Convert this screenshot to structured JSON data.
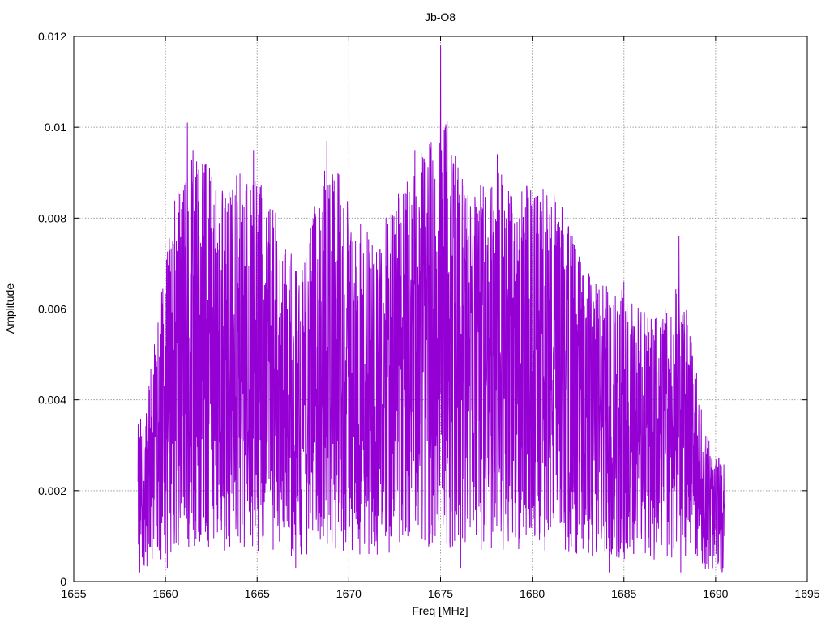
{
  "chart_data": {
    "type": "line",
    "title": "Jb-O8",
    "xlabel": "Freq [MHz]",
    "ylabel": "Amplitude",
    "xlim": [
      1655,
      1695
    ],
    "ylim": [
      0,
      0.012
    ],
    "xticks": [
      1655,
      1660,
      1665,
      1670,
      1675,
      1680,
      1685,
      1690,
      1695
    ],
    "xtick_labels": [
      "1655",
      "1660",
      "1665",
      "1670",
      "1675",
      "1680",
      "1685",
      "1690",
      "1695"
    ],
    "yticks": [
      0,
      0.002,
      0.004,
      0.006,
      0.008,
      0.01,
      0.012
    ],
    "ytick_labels": [
      "0",
      "0.002",
      "0.004",
      "0.006",
      "0.008",
      "0.01",
      "0.012"
    ],
    "grid": true,
    "line_color": "#9400d3",
    "freq_range": [
      1658.5,
      1690.5
    ],
    "peaks": [
      {
        "x": 1658.5,
        "y": 0.0022
      },
      {
        "x": 1659.1,
        "y": 0.0043
      },
      {
        "x": 1659.6,
        "y": 0.0057
      },
      {
        "x": 1660.4,
        "y": 0.0075
      },
      {
        "x": 1660.7,
        "y": 0.0093
      },
      {
        "x": 1661.2,
        "y": 0.0101
      },
      {
        "x": 1661.5,
        "y": 0.0095
      },
      {
        "x": 1662.4,
        "y": 0.0091
      },
      {
        "x": 1663.1,
        "y": 0.0086
      },
      {
        "x": 1663.8,
        "y": 0.0085
      },
      {
        "x": 1664.8,
        "y": 0.0095
      },
      {
        "x": 1665.1,
        "y": 0.0088
      },
      {
        "x": 1665.7,
        "y": 0.0082
      },
      {
        "x": 1666.5,
        "y": 0.0072
      },
      {
        "x": 1667.5,
        "y": 0.0066
      },
      {
        "x": 1668.8,
        "y": 0.0097
      },
      {
        "x": 1669.4,
        "y": 0.009
      },
      {
        "x": 1670.1,
        "y": 0.0075
      },
      {
        "x": 1671.0,
        "y": 0.0077
      },
      {
        "x": 1671.7,
        "y": 0.0073
      },
      {
        "x": 1672.3,
        "y": 0.0081
      },
      {
        "x": 1673.0,
        "y": 0.0084
      },
      {
        "x": 1673.6,
        "y": 0.0095
      },
      {
        "x": 1674.1,
        "y": 0.0093
      },
      {
        "x": 1674.5,
        "y": 0.0088
      },
      {
        "x": 1675.0,
        "y": 0.0118
      },
      {
        "x": 1675.7,
        "y": 0.0092
      },
      {
        "x": 1676.3,
        "y": 0.0085
      },
      {
        "x": 1677.3,
        "y": 0.0082
      },
      {
        "x": 1678.1,
        "y": 0.0094
      },
      {
        "x": 1678.9,
        "y": 0.0081
      },
      {
        "x": 1679.7,
        "y": 0.0087
      },
      {
        "x": 1680.8,
        "y": 0.0085
      },
      {
        "x": 1681.2,
        "y": 0.0085
      },
      {
        "x": 1682.1,
        "y": 0.0076
      },
      {
        "x": 1683.2,
        "y": 0.0065
      },
      {
        "x": 1684.2,
        "y": 0.0063
      },
      {
        "x": 1685.0,
        "y": 0.0066
      },
      {
        "x": 1686.3,
        "y": 0.0058
      },
      {
        "x": 1687.2,
        "y": 0.0054
      },
      {
        "x": 1688.0,
        "y": 0.0076
      },
      {
        "x": 1688.6,
        "y": 0.0054
      },
      {
        "x": 1689.5,
        "y": 0.0028
      },
      {
        "x": 1690.1,
        "y": 0.0025
      }
    ],
    "troughs": [
      {
        "x": 1658.6,
        "y": 0.0002
      },
      {
        "x": 1660.1,
        "y": 0.0003
      },
      {
        "x": 1660.7,
        "y": 0.0008
      },
      {
        "x": 1662.3,
        "y": 0.0009
      },
      {
        "x": 1664.6,
        "y": 0.0015
      },
      {
        "x": 1666.7,
        "y": 0.0012
      },
      {
        "x": 1667.1,
        "y": 0.0003
      },
      {
        "x": 1669.6,
        "y": 0.0011
      },
      {
        "x": 1670.6,
        "y": 0.0006
      },
      {
        "x": 1672.0,
        "y": 0.001
      },
      {
        "x": 1673.1,
        "y": 0.0011
      },
      {
        "x": 1674.6,
        "y": 0.0019
      },
      {
        "x": 1676.1,
        "y": 0.0003
      },
      {
        "x": 1678.3,
        "y": 0.0011
      },
      {
        "x": 1679.4,
        "y": 0.0018
      },
      {
        "x": 1682.3,
        "y": 0.0017
      },
      {
        "x": 1684.2,
        "y": 0.0002
      },
      {
        "x": 1685.6,
        "y": 0.0006
      },
      {
        "x": 1688.1,
        "y": 0.0002
      },
      {
        "x": 1689.6,
        "y": 0.0003
      },
      {
        "x": 1690.4,
        "y": 0.0003
      }
    ]
  }
}
